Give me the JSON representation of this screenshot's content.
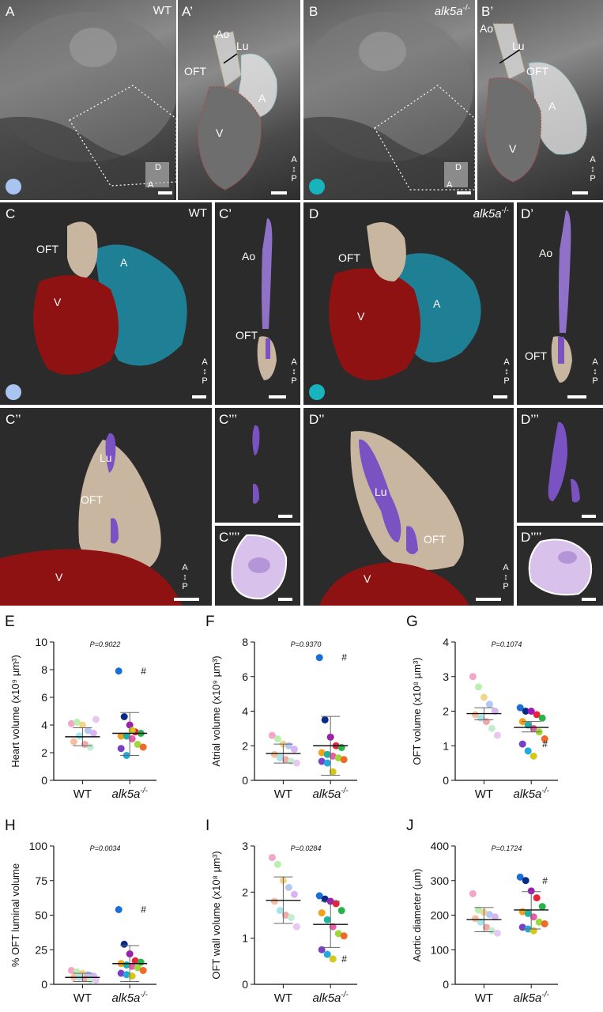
{
  "panels_top": {
    "A": {
      "label": "A",
      "genotype": "WT",
      "axis_d": "D",
      "axis_a": "A"
    },
    "A_prime": {
      "label": "A’",
      "ao": "Ao",
      "lu": "Lu",
      "oft": "OFT",
      "a": "A",
      "v": "V"
    },
    "B": {
      "label": "B",
      "genotype": "alk5a",
      "genotype_sup": "-/-",
      "axis_d": "D",
      "axis_a": "A"
    },
    "B_prime": {
      "label": "B’",
      "ao": "Ao",
      "lu": "Lu",
      "oft": "OFT",
      "a": "A",
      "v": "V"
    }
  },
  "panels_3d": {
    "C": {
      "label": "C",
      "genotype": "WT",
      "oft": "OFT",
      "a": "A",
      "v": "V"
    },
    "C_prime": {
      "label": "C’",
      "ao": "Ao",
      "oft": "OFT"
    },
    "D": {
      "label": "D",
      "genotype": "alk5a",
      "genotype_sup": "-/-",
      "oft": "OFT",
      "a": "A",
      "v": "V"
    },
    "D_prime": {
      "label": "D’",
      "ao": "Ao",
      "oft": "OFT"
    },
    "C2": {
      "label": "C’’",
      "lu": "Lu",
      "oft": "OFT",
      "v": "V"
    },
    "C3": {
      "label": "C’’’"
    },
    "C4": {
      "label": "C’’’’"
    },
    "D2": {
      "label": "D’’",
      "lu": "Lu",
      "oft": "OFT",
      "v": "V"
    },
    "D3": {
      "label": "D’’’"
    },
    "D4": {
      "label": "D’’’’"
    },
    "orientation": {
      "a": "A",
      "p": "P"
    }
  },
  "colors": {
    "wt_marker": "#a9c4f0",
    "mutant_marker": "#17b4bd",
    "ventricle": "#8e1212",
    "atrium": "#1f7f95",
    "oft": "#c8b6a0",
    "lumen": "#7b52c2"
  },
  "chart_data": [
    {
      "type": "scatter",
      "panel": "E",
      "title": "",
      "pvalue": "P=0.9022",
      "ylabel": "Heart volume (x10⁹ µm³)",
      "ylim": [
        0,
        10
      ],
      "yticks": [
        0,
        2,
        4,
        6,
        8,
        10
      ],
      "categories": [
        "WT",
        "alk5a-/-"
      ],
      "series": [
        {
          "values": [
            4.1,
            4.2,
            4.0,
            3.6,
            3.4,
            2.8,
            3.2,
            2.6,
            2.4,
            4.4
          ],
          "mean": 3.15,
          "sd": [
            2.5,
            3.8
          ]
        },
        {
          "values": [
            7.9,
            4.6,
            4.0,
            3.5,
            3.4,
            3.2,
            3.2,
            3.0,
            2.6,
            2.4,
            2.3,
            1.8,
            3.6
          ],
          "mean": 3.4,
          "sd": [
            1.8,
            4.9
          ],
          "annotated_value": 7.9,
          "annotation": "#"
        }
      ]
    },
    {
      "type": "scatter",
      "panel": "F",
      "title": "",
      "pvalue": "P=0.9370",
      "ylabel": "Atrial volume (x10⁹ µm³)",
      "ylim": [
        0,
        8
      ],
      "yticks": [
        0,
        2,
        4,
        6,
        8
      ],
      "categories": [
        "WT",
        "alk5a-/-"
      ],
      "series": [
        {
          "values": [
            2.6,
            2.4,
            2.1,
            2.0,
            1.8,
            1.5,
            1.3,
            1.2,
            1.1,
            1.0
          ],
          "mean": 1.55,
          "sd": [
            1.0,
            2.1
          ]
        },
        {
          "values": [
            7.1,
            3.5,
            2.5,
            2.0,
            1.9,
            1.6,
            1.5,
            1.4,
            1.3,
            1.2,
            1.1,
            1.0,
            0.5
          ],
          "mean": 2.0,
          "sd": [
            0.3,
            3.7
          ],
          "annotated_value": 7.1,
          "annotation": "#"
        }
      ]
    },
    {
      "type": "scatter",
      "panel": "G",
      "title": "",
      "pvalue": "P=0.1074",
      "ylabel": "OFT volume (x10⁸ µm³)",
      "ylim": [
        0,
        4
      ],
      "yticks": [
        0,
        1,
        2,
        3,
        4
      ],
      "categories": [
        "WT",
        "alk5a-/-"
      ],
      "series": [
        {
          "values": [
            3.0,
            2.7,
            2.4,
            2.2,
            2.0,
            1.9,
            1.8,
            1.7,
            1.5,
            1.3
          ],
          "mean": 1.93,
          "sd": [
            1.75,
            2.1
          ]
        },
        {
          "values": [
            2.1,
            2.0,
            2.0,
            1.9,
            1.8,
            1.7,
            1.6,
            1.5,
            1.4,
            1.2,
            1.05,
            0.85,
            0.7
          ],
          "mean": 1.53,
          "sd": [
            1.4,
            1.7
          ],
          "annotated_value": 1.05,
          "annotation": "#"
        }
      ]
    },
    {
      "type": "scatter",
      "panel": "H",
      "title": "",
      "pvalue": "P=0.0034",
      "ylabel": "% OFT luminal volume",
      "ylim": [
        0,
        100
      ],
      "yticks": [
        0,
        25,
        50,
        75,
        100
      ],
      "categories": [
        "WT",
        "alk5a-/-"
      ],
      "series": [
        {
          "values": [
            10,
            9,
            8,
            7,
            6,
            5,
            5,
            4,
            3,
            3
          ],
          "mean": 5,
          "sd": [
            2,
            8
          ]
        },
        {
          "values": [
            54,
            29,
            22,
            17,
            16,
            15,
            14,
            13,
            12,
            10,
            8,
            7,
            6
          ],
          "mean": 15,
          "sd": [
            2,
            28
          ],
          "annotated_value": 54,
          "annotation": "#"
        }
      ]
    },
    {
      "type": "scatter",
      "panel": "I",
      "title": "",
      "pvalue": "P=0.0284",
      "ylabel": "OFT wall volume (x10⁸ µm³)",
      "ylim": [
        0,
        3
      ],
      "yticks": [
        0,
        1,
        2,
        3
      ],
      "categories": [
        "WT",
        "alk5a-/-"
      ],
      "series": [
        {
          "values": [
            2.75,
            2.6,
            2.25,
            2.1,
            1.95,
            1.8,
            1.6,
            1.5,
            1.45,
            1.25
          ],
          "mean": 1.82,
          "sd": [
            1.32,
            2.33
          ]
        },
        {
          "values": [
            1.92,
            1.85,
            1.8,
            1.75,
            1.6,
            1.55,
            1.4,
            1.25,
            1.1,
            1.05,
            0.75,
            0.65,
            0.55
          ],
          "mean": 1.3,
          "sd": [
            0.8,
            1.8
          ],
          "annotated_value": 0.55,
          "annotation": "#"
        }
      ]
    },
    {
      "type": "scatter",
      "panel": "J",
      "title": "",
      "pvalue": "P=0.1724",
      "ylabel": "Aortic diameter (µm)",
      "ylim": [
        0,
        400
      ],
      "yticks": [
        0,
        100,
        200,
        300,
        400
      ],
      "categories": [
        "WT",
        "alk5a-/-"
      ],
      "series": [
        {
          "values": [
            262,
            215,
            208,
            202,
            195,
            190,
            180,
            165,
            155,
            148
          ],
          "mean": 187,
          "sd": [
            152,
            222
          ]
        },
        {
          "values": [
            310,
            300,
            270,
            250,
            225,
            210,
            205,
            195,
            180,
            175,
            165,
            160,
            155
          ],
          "mean": 215,
          "sd": [
            160,
            268
          ],
          "annotated_value": 300,
          "annotation": "#"
        }
      ]
    }
  ],
  "point_palette": [
    "#f4a6c8",
    "#b9f0b0",
    "#f2d48c",
    "#b4c8f4",
    "#d8b4f0",
    "#f6c0a0",
    "#a6e4ec",
    "#f0a8a8",
    "#c4ecd0",
    "#e6c8f0"
  ],
  "mutant_palette": [
    "#1a6fd6",
    "#0a2a8a",
    "#a216b8",
    "#e8233a",
    "#29b34a",
    "#f2a11a",
    "#1fb2a0",
    "#e55fa8",
    "#9ed93a",
    "#f06a2a",
    "#7a3fc8",
    "#22aadd",
    "#d4c81a"
  ]
}
